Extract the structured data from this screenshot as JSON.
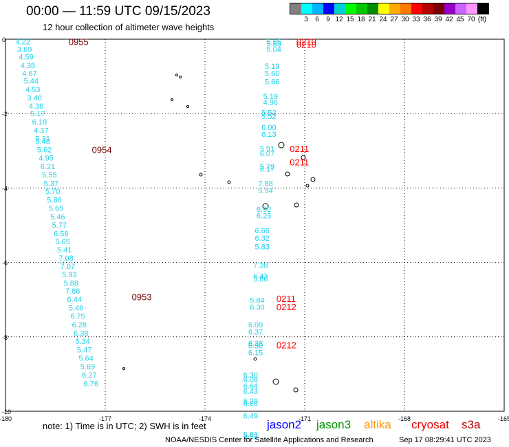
{
  "header": {
    "title": "00:00 — 11:59 UTC 09/15/2023",
    "subtitle": "12 hour collection of altimeter wave heights"
  },
  "legend": {
    "colors": [
      "#808080",
      "#00ffff",
      "#00b4ff",
      "#0000ff",
      "#00d2d2",
      "#00ff00",
      "#00c800",
      "#008c00",
      "#ffff00",
      "#ffaa00",
      "#ff7800",
      "#ff0000",
      "#b40000",
      "#780000",
      "#9600c8",
      "#c864ff",
      "#ff96ff",
      "#000000"
    ],
    "ticks": [
      "3",
      "6",
      "9",
      "12",
      "15",
      "18",
      "21",
      "24",
      "27",
      "30",
      "33",
      "36",
      "39",
      "42",
      "45",
      "70"
    ],
    "unit": "(ft)"
  },
  "axes": {
    "x_ticks": [
      "-180",
      "-177",
      "-174",
      "-171",
      "-168",
      "-165"
    ],
    "y_ticks": [
      "0",
      "-2",
      "-4",
      "-6",
      "-8",
      "-10"
    ]
  },
  "observations": {
    "color": "#1ecfe8",
    "track_west": [
      {
        "lon": -179.7,
        "lat": -0.05,
        "v": "4.22"
      },
      {
        "lon": -179.65,
        "lat": -0.25,
        "v": "3.69"
      },
      {
        "lon": -179.6,
        "lat": -0.45,
        "v": "4.59"
      },
      {
        "lon": -179.55,
        "lat": -0.68,
        "v": "4.38"
      },
      {
        "lon": -179.5,
        "lat": -0.9,
        "v": "4.67"
      },
      {
        "lon": -179.45,
        "lat": -1.1,
        "v": "5.44"
      },
      {
        "lon": -179.4,
        "lat": -1.33,
        "v": "4.53"
      },
      {
        "lon": -179.35,
        "lat": -1.55,
        "v": "3.40"
      },
      {
        "lon": -179.3,
        "lat": -1.77,
        "v": "4.36"
      },
      {
        "lon": -179.25,
        "lat": -1.98,
        "v": "5.17"
      },
      {
        "lon": -179.2,
        "lat": -2.2,
        "v": "6.10"
      },
      {
        "lon": -179.15,
        "lat": -2.43,
        "v": "4.37"
      },
      {
        "lon": -179.1,
        "lat": -2.65,
        "v": "5.31"
      },
      {
        "lon": -179.1,
        "lat": -2.73,
        "v": "5.40"
      },
      {
        "lon": -179.05,
        "lat": -2.95,
        "v": "5.62"
      },
      {
        "lon": -179.0,
        "lat": -3.17,
        "v": "4.95"
      },
      {
        "lon": -178.95,
        "lat": -3.4,
        "v": "6.21"
      },
      {
        "lon": -178.9,
        "lat": -3.62,
        "v": "5.55"
      },
      {
        "lon": -178.85,
        "lat": -3.85,
        "v": "5.37"
      },
      {
        "lon": -178.8,
        "lat": -4.07,
        "v": "5.70"
      },
      {
        "lon": -178.75,
        "lat": -4.3,
        "v": "5.86"
      },
      {
        "lon": -178.7,
        "lat": -4.52,
        "v": "5.65"
      },
      {
        "lon": -178.65,
        "lat": -4.75,
        "v": "5.46"
      },
      {
        "lon": -178.6,
        "lat": -4.97,
        "v": "5.77"
      },
      {
        "lon": -178.55,
        "lat": -5.2,
        "v": "6.56"
      },
      {
        "lon": -178.5,
        "lat": -5.42,
        "v": "5.65"
      },
      {
        "lon": -178.45,
        "lat": -5.64,
        "v": "5.41"
      },
      {
        "lon": -178.4,
        "lat": -5.86,
        "v": "7.08"
      },
      {
        "lon": -178.35,
        "lat": -6.08,
        "v": "7.07"
      },
      {
        "lon": -178.3,
        "lat": -6.3,
        "v": "5.93"
      },
      {
        "lon": -178.25,
        "lat": -6.53,
        "v": "5.88"
      },
      {
        "lon": -178.2,
        "lat": -6.75,
        "v": "7.86"
      },
      {
        "lon": -178.15,
        "lat": -6.97,
        "v": "6.44"
      },
      {
        "lon": -178.1,
        "lat": -7.2,
        "v": "5.46"
      },
      {
        "lon": -178.05,
        "lat": -7.42,
        "v": "6.75"
      },
      {
        "lon": -178.0,
        "lat": -7.65,
        "v": "6.28"
      },
      {
        "lon": -177.95,
        "lat": -7.88,
        "v": "6.38"
      },
      {
        "lon": -177.9,
        "lat": -8.1,
        "v": "5.34"
      },
      {
        "lon": -177.85,
        "lat": -8.33,
        "v": "5.47"
      },
      {
        "lon": -177.8,
        "lat": -8.55,
        "v": "5.64"
      },
      {
        "lon": -177.75,
        "lat": -8.78,
        "v": "5.69"
      },
      {
        "lon": -177.7,
        "lat": -9.0,
        "v": "6.27"
      },
      {
        "lon": -177.65,
        "lat": -9.23,
        "v": "6.76"
      }
    ],
    "track_east": [
      {
        "lon": -172.15,
        "lat": -0.05,
        "v": "5.65"
      },
      {
        "lon": -172.15,
        "lat": -0.1,
        "v": "5.63"
      },
      {
        "lon": -172.15,
        "lat": -0.25,
        "v": "5.04"
      },
      {
        "lon": -172.2,
        "lat": -0.7,
        "v": "5.19"
      },
      {
        "lon": -172.2,
        "lat": -0.9,
        "v": "5.60"
      },
      {
        "lon": -172.2,
        "lat": -1.12,
        "v": "5.66"
      },
      {
        "lon": -172.25,
        "lat": -1.52,
        "v": "5.19"
      },
      {
        "lon": -172.25,
        "lat": -1.67,
        "v": "4.96"
      },
      {
        "lon": -172.3,
        "lat": -1.95,
        "v": "5.52"
      },
      {
        "lon": -172.3,
        "lat": -2.05,
        "v": "5.52"
      },
      {
        "lon": -172.3,
        "lat": -2.35,
        "v": "6.00"
      },
      {
        "lon": -172.3,
        "lat": -2.53,
        "v": "6.13"
      },
      {
        "lon": -172.35,
        "lat": -2.92,
        "v": "5.91"
      },
      {
        "lon": -172.35,
        "lat": -3.05,
        "v": "6.07"
      },
      {
        "lon": -172.35,
        "lat": -3.4,
        "v": "5.79"
      },
      {
        "lon": -172.35,
        "lat": -3.47,
        "v": "6.17"
      },
      {
        "lon": -172.4,
        "lat": -3.85,
        "v": "7.88"
      },
      {
        "lon": -172.4,
        "lat": -4.05,
        "v": "5.94"
      },
      {
        "lon": -172.45,
        "lat": -4.55,
        "v": "6.92"
      },
      {
        "lon": -172.45,
        "lat": -4.72,
        "v": "6.25"
      },
      {
        "lon": -172.5,
        "lat": -5.12,
        "v": "6.66"
      },
      {
        "lon": -172.5,
        "lat": -5.32,
        "v": "6.32"
      },
      {
        "lon": -172.5,
        "lat": -5.55,
        "v": "5.83"
      },
      {
        "lon": -172.55,
        "lat": -6.05,
        "v": "7.38"
      },
      {
        "lon": -172.55,
        "lat": -6.35,
        "v": "6.43"
      },
      {
        "lon": -172.55,
        "lat": -6.42,
        "v": "5.86"
      },
      {
        "lon": -172.65,
        "lat": -7.0,
        "v": "5.84"
      },
      {
        "lon": -172.65,
        "lat": -7.18,
        "v": "6.30"
      },
      {
        "lon": -172.7,
        "lat": -7.65,
        "v": "6.09"
      },
      {
        "lon": -172.7,
        "lat": -7.85,
        "v": "6.37"
      },
      {
        "lon": -172.7,
        "lat": -8.15,
        "v": "6.28"
      },
      {
        "lon": -172.7,
        "lat": -8.22,
        "v": "6.30"
      },
      {
        "lon": -172.7,
        "lat": -8.4,
        "v": "6.15"
      },
      {
        "lon": -172.85,
        "lat": -9.0,
        "v": "6.30"
      },
      {
        "lon": -172.85,
        "lat": -9.12,
        "v": "6.08"
      },
      {
        "lon": -172.85,
        "lat": -9.3,
        "v": "6.64"
      },
      {
        "lon": -172.85,
        "lat": -9.45,
        "v": "6.43"
      },
      {
        "lon": -172.85,
        "lat": -9.7,
        "v": "6.29"
      },
      {
        "lon": -172.85,
        "lat": -9.77,
        "v": "6.28"
      },
      {
        "lon": -172.85,
        "lat": -10.1,
        "v": "6.49"
      },
      {
        "lon": -172.85,
        "lat": -10.6,
        "v": "5.93"
      },
      {
        "lon": -172.85,
        "lat": -10.65,
        "v": "5.92"
      }
    ]
  },
  "pass_times": [
    {
      "lon": -178.1,
      "lat": -0.05,
      "t": "0955",
      "color": "#780000"
    },
    {
      "lon": -177.4,
      "lat": -2.95,
      "t": "0954",
      "color": "#780000"
    },
    {
      "lon": -176.2,
      "lat": -6.9,
      "t": "0953",
      "color": "#780000"
    },
    {
      "lon": -171.25,
      "lat": -0.05,
      "t": "0210",
      "color": "#ff0000"
    },
    {
      "lon": -171.25,
      "lat": -0.12,
      "t": "0210",
      "color": "#ff0000"
    },
    {
      "lon": -171.45,
      "lat": -2.92,
      "t": "0211",
      "color": "#ff0000"
    },
    {
      "lon": -171.45,
      "lat": -3.28,
      "t": "0211",
      "color": "#ff0000"
    },
    {
      "lon": -171.85,
      "lat": -6.95,
      "t": "0211",
      "color": "#ff0000"
    },
    {
      "lon": -171.85,
      "lat": -7.17,
      "t": "0212",
      "color": "#ff0000"
    },
    {
      "lon": -171.85,
      "lat": -8.2,
      "t": "0212",
      "color": "#ff0000"
    }
  ],
  "footer": {
    "note": "note:  1) Time is in UTC;  2) SWH is in feet",
    "satellites": [
      {
        "name": "jason2",
        "color": "#0000ff"
      },
      {
        "name": "jason3",
        "color": "#009600"
      },
      {
        "name": "altika",
        "color": "#ff9600"
      },
      {
        "name": "cryosat",
        "color": "#e60000"
      },
      {
        "name": "s3a",
        "color": "#b40000"
      }
    ],
    "credit": "NOAA/NESDIS Center for Satellite Applications and Research",
    "timestamp": "Sep 17 08:29:41 UTC 2023"
  }
}
